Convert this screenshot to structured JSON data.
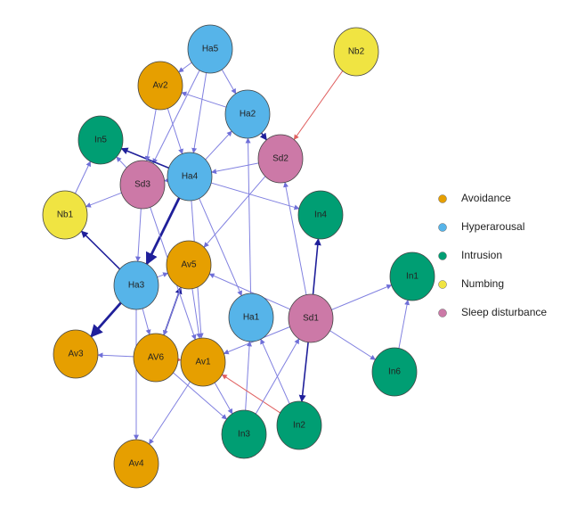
{
  "nodes": [
    {
      "label": "Ha5"
    },
    {
      "label": "Nb2"
    },
    {
      "label": "Av2"
    },
    {
      "label": "Ha2"
    },
    {
      "label": "In5"
    },
    {
      "label": "Sd2"
    },
    {
      "label": "Sd3"
    },
    {
      "label": "Ha4"
    },
    {
      "label": "Nb1"
    },
    {
      "label": "In4"
    },
    {
      "label": "Av5"
    },
    {
      "label": "Ha3"
    },
    {
      "label": "In1"
    },
    {
      "label": "Ha1"
    },
    {
      "label": "Sd1"
    },
    {
      "label": "Av3"
    },
    {
      "label": "AV6"
    },
    {
      "label": "Av1"
    },
    {
      "label": "In6"
    },
    {
      "label": "In3"
    },
    {
      "label": "In2"
    },
    {
      "label": "Av4"
    }
  ],
  "legend": [
    {
      "label": "Avoidance",
      "color": "#e69f00"
    },
    {
      "label": "Hyperarousal",
      "color": "#56b4e9"
    },
    {
      "label": "Intrusion",
      "color": "#009e73"
    },
    {
      "label": "Numbing",
      "color": "#f0e442"
    },
    {
      "label": "Sleep disturbance",
      "color": "#cc79a7"
    }
  ]
}
